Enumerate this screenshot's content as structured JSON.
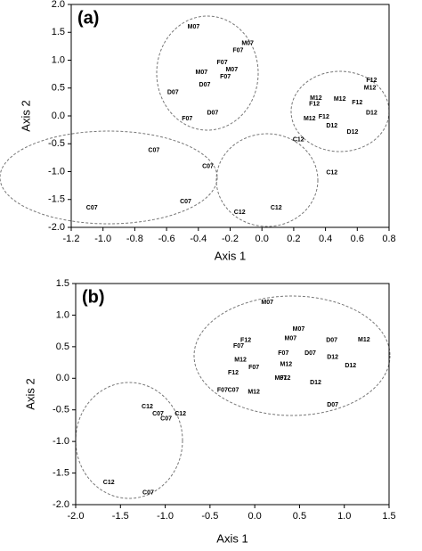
{
  "chart_data": [
    {
      "type": "scatter",
      "title": "(a)",
      "xlabel": "Axis 1",
      "ylabel": "Axis 2",
      "xlim": [
        -1.2,
        0.8
      ],
      "ylim": [
        -2,
        2
      ],
      "xticks": [
        {
          "value": -1.2,
          "label": "-1.2"
        },
        {
          "value": -1,
          "label": "-1.0"
        },
        -0.8,
        -0.6,
        -0.4,
        -0.2,
        {
          "value": 0,
          "label": "0.0"
        },
        0.2,
        0.4,
        0.6,
        0.8
      ],
      "yticks": [
        {
          "value": 2,
          "label": "2.0"
        },
        1.5,
        {
          "value": 1,
          "label": "1.0"
        },
        0.5,
        {
          "value": 0,
          "label": "0.0"
        },
        -0.5,
        {
          "value": -1,
          "label": "-1.0"
        },
        -1.5,
        {
          "value": -2,
          "label": "-2.0"
        }
      ],
      "points": [
        {
          "label": "M07",
          "x": -0.43,
          "y": 1.6
        },
        {
          "label": "M07",
          "x": -0.09,
          "y": 1.3
        },
        {
          "label": "F07",
          "x": -0.15,
          "y": 1.17
        },
        {
          "label": "F07",
          "x": -0.25,
          "y": 0.96
        },
        {
          "label": "M07",
          "x": -0.19,
          "y": 0.83
        },
        {
          "label": "M07",
          "x": -0.38,
          "y": 0.78
        },
        {
          "label": "F07",
          "x": -0.23,
          "y": 0.7
        },
        {
          "label": "D07",
          "x": -0.36,
          "y": 0.56
        },
        {
          "label": "D07",
          "x": -0.56,
          "y": 0.42
        },
        {
          "label": "D07",
          "x": -0.31,
          "y": 0.05
        },
        {
          "label": "F07",
          "x": -0.47,
          "y": -0.05
        },
        {
          "label": "F12",
          "x": 0.69,
          "y": 0.64
        },
        {
          "label": "M12",
          "x": 0.68,
          "y": 0.5
        },
        {
          "label": "M12",
          "x": 0.34,
          "y": 0.32
        },
        {
          "label": "F12",
          "x": 0.33,
          "y": 0.21
        },
        {
          "label": "M12",
          "x": 0.49,
          "y": 0.3
        },
        {
          "label": "F12",
          "x": 0.6,
          "y": 0.24
        },
        {
          "label": "D12",
          "x": 0.69,
          "y": 0.05
        },
        {
          "label": "F12",
          "x": 0.39,
          "y": -0.02
        },
        {
          "label": "M12",
          "x": 0.3,
          "y": -0.05
        },
        {
          "label": "D12",
          "x": 0.44,
          "y": -0.18
        },
        {
          "label": "D12",
          "x": 0.57,
          "y": -0.29
        },
        {
          "label": "C12",
          "x": 0.23,
          "y": -0.43
        },
        {
          "label": "C12",
          "x": 0.44,
          "y": -1.02
        },
        {
          "label": "C07",
          "x": -0.68,
          "y": -0.62
        },
        {
          "label": "C07",
          "x": -0.34,
          "y": -0.91
        },
        {
          "label": "C07",
          "x": -0.48,
          "y": -1.54
        },
        {
          "label": "C07",
          "x": -1.07,
          "y": -1.65
        },
        {
          "label": "C12",
          "x": -0.14,
          "y": -1.73
        },
        {
          "label": "C12",
          "x": 0.09,
          "y": -1.65
        }
      ]
    },
    {
      "type": "scatter",
      "title": "(b)",
      "xlabel": "Axis 1",
      "ylabel": "Axis 2",
      "xlim": [
        -2,
        1.5
      ],
      "ylim": [
        -2,
        1.5
      ],
      "xticks": [
        {
          "value": -2,
          "label": "-2.0"
        },
        -1.5,
        {
          "value": -1,
          "label": "-1.0"
        },
        -0.5,
        {
          "value": 0,
          "label": "0.0"
        },
        0.5,
        {
          "value": 1,
          "label": "1.0"
        },
        1.5
      ],
      "yticks": [
        1.5,
        {
          "value": 1,
          "label": "1.0"
        },
        0.5,
        {
          "value": 0,
          "label": "0.0"
        },
        -0.5,
        {
          "value": -1,
          "label": "-1.0"
        },
        -1.5,
        {
          "value": -2,
          "label": "-2.0"
        }
      ],
      "points": [
        {
          "label": "M07",
          "x": 0.14,
          "y": 1.2
        },
        {
          "label": "M07",
          "x": 0.49,
          "y": 0.78
        },
        {
          "label": "F12",
          "x": -0.1,
          "y": 0.6
        },
        {
          "label": "F07",
          "x": -0.18,
          "y": 0.51
        },
        {
          "label": "M07",
          "x": 0.4,
          "y": 0.63
        },
        {
          "label": "D07",
          "x": 0.86,
          "y": 0.6
        },
        {
          "label": "M12",
          "x": 1.22,
          "y": 0.61
        },
        {
          "label": "F07",
          "x": 0.32,
          "y": 0.4
        },
        {
          "label": "D07",
          "x": 0.62,
          "y": 0.4
        },
        {
          "label": "D12",
          "x": 0.87,
          "y": 0.33
        },
        {
          "label": "M12",
          "x": -0.16,
          "y": 0.29
        },
        {
          "label": "D12",
          "x": 1.07,
          "y": 0.2
        },
        {
          "label": "F07",
          "x": -0.01,
          "y": 0.17
        },
        {
          "label": "M12",
          "x": 0.35,
          "y": 0.22
        },
        {
          "label": "M07",
          "x": 0.29,
          "y": 0.0
        },
        {
          "label": "F12",
          "x": -0.24,
          "y": 0.09
        },
        {
          "label": "F12",
          "x": 0.34,
          "y": 0.0
        },
        {
          "label": "D12",
          "x": 0.68,
          "y": -0.07
        },
        {
          "label": "F07",
          "x": -0.36,
          "y": -0.19
        },
        {
          "label": "C07",
          "x": -0.24,
          "y": -0.19
        },
        {
          "label": "M12",
          "x": -0.01,
          "y": -0.22
        },
        {
          "label": "D07",
          "x": 0.87,
          "y": -0.42
        },
        {
          "label": "C12",
          "x": -1.2,
          "y": -0.45
        },
        {
          "label": "C07",
          "x": -1.08,
          "y": -0.56
        },
        {
          "label": "C12",
          "x": -0.83,
          "y": -0.56
        },
        {
          "label": "C07",
          "x": -0.99,
          "y": -0.64
        },
        {
          "label": "C12",
          "x": -1.63,
          "y": -1.65
        },
        {
          "label": "C07",
          "x": -1.19,
          "y": -1.81
        }
      ]
    }
  ]
}
